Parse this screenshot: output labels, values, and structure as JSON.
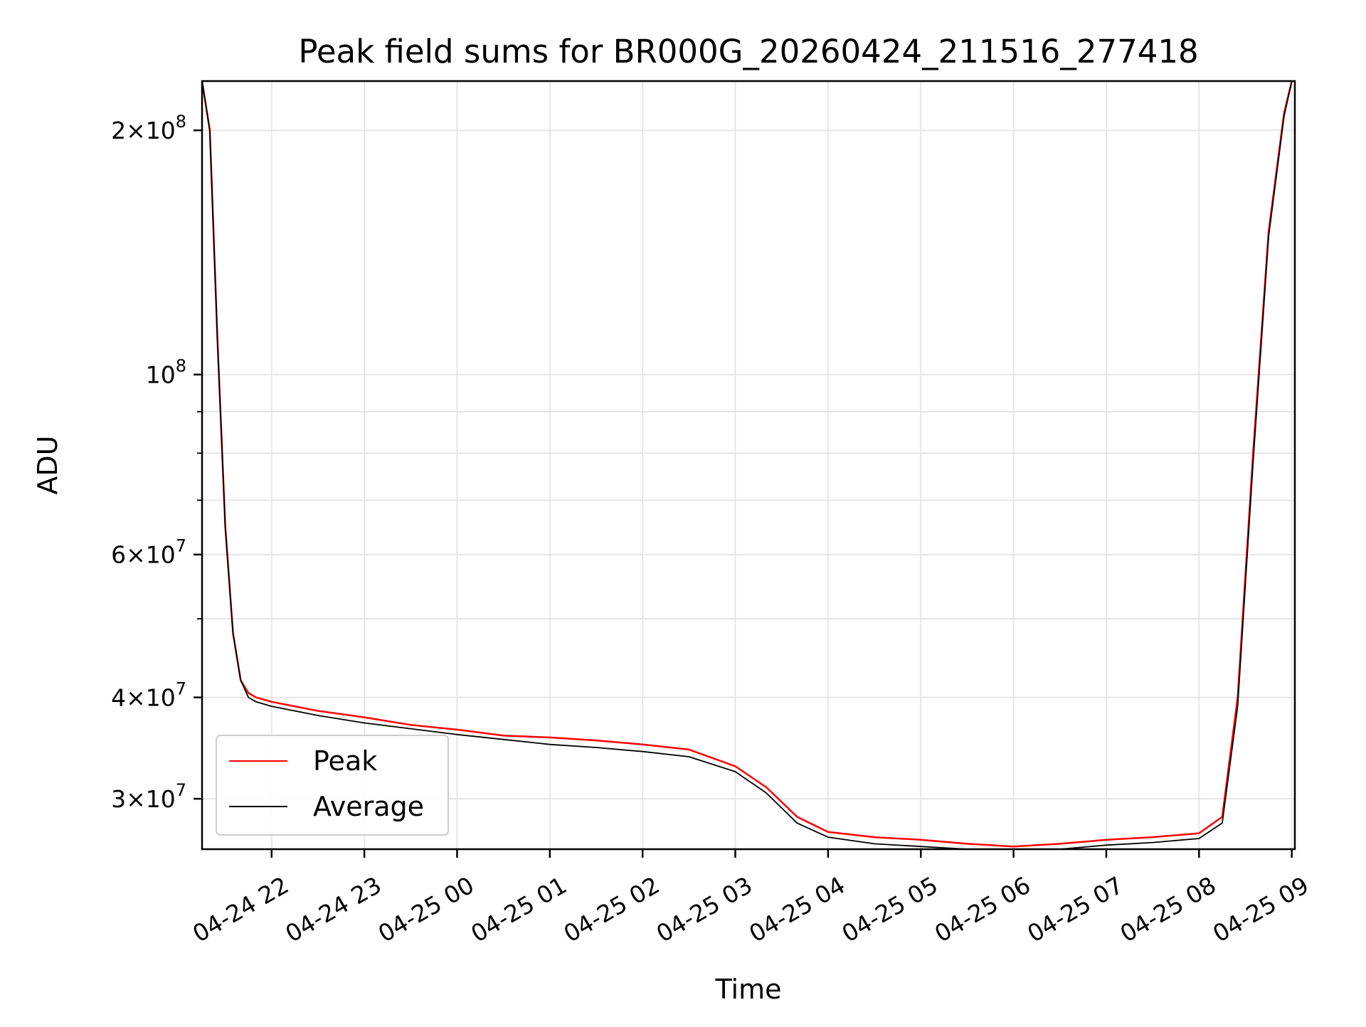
{
  "chart_data": {
    "type": "line",
    "title": "Peak field sums for BR000G_20260424_211516_277418",
    "xlabel": "Time",
    "ylabel": "ADU",
    "yscale": "log",
    "grid": true,
    "legend_position": "lower-left",
    "x_tick_labels": [
      "04-24 22",
      "04-24 23",
      "04-25 00",
      "04-25 01",
      "04-25 02",
      "04-25 03",
      "04-25 04",
      "04-25 05",
      "04-25 06",
      "04-25 07",
      "04-25 08",
      "04-25 09"
    ],
    "x_tick_values": [
      "2026-04-24 22:00",
      "2026-04-24 23:00",
      "2026-04-25 00:00",
      "2026-04-25 01:00",
      "2026-04-25 02:00",
      "2026-04-25 03:00",
      "2026-04-25 04:00",
      "2026-04-25 05:00",
      "2026-04-25 06:00",
      "2026-04-25 07:00",
      "2026-04-25 08:00",
      "2026-04-25 09:00"
    ],
    "xlim": [
      "2026-04-24 21:15",
      "2026-04-25 09:02"
    ],
    "ylim": [
      26000000,
      230000000
    ],
    "y_ticks": [
      {
        "value": 30000000,
        "mantissa": "3",
        "exponent": "7"
      },
      {
        "value": 40000000,
        "mantissa": "4",
        "exponent": "7"
      },
      {
        "value": 60000000,
        "mantissa": "6",
        "exponent": "7"
      },
      {
        "value": 100000000,
        "mantissa": "",
        "exponent": "8"
      },
      {
        "value": 200000000,
        "mantissa": "2",
        "exponent": "8"
      }
    ],
    "series": [
      {
        "name": "Peak",
        "color": "#ff0000",
        "x": [
          "2026-04-24 21:15",
          "2026-04-24 21:20",
          "2026-04-24 21:25",
          "2026-04-24 21:30",
          "2026-04-24 21:35",
          "2026-04-24 21:40",
          "2026-04-24 21:45",
          "2026-04-24 21:50",
          "2026-04-24 22:00",
          "2026-04-24 22:30",
          "2026-04-24 23:00",
          "2026-04-24 23:30",
          "2026-04-25 00:00",
          "2026-04-25 00:30",
          "2026-04-25 01:00",
          "2026-04-25 01:30",
          "2026-04-25 02:00",
          "2026-04-25 02:30",
          "2026-04-25 03:00",
          "2026-04-25 03:20",
          "2026-04-25 03:40",
          "2026-04-25 04:00",
          "2026-04-25 04:30",
          "2026-04-25 05:00",
          "2026-04-25 05:30",
          "2026-04-25 06:00",
          "2026-04-25 06:30",
          "2026-04-25 07:00",
          "2026-04-25 07:30",
          "2026-04-25 08:00",
          "2026-04-25 08:15",
          "2026-04-25 08:25",
          "2026-04-25 08:35",
          "2026-04-25 08:45",
          "2026-04-25 08:55",
          "2026-04-25 09:00"
        ],
        "y": [
          230000000,
          200000000,
          110000000,
          65000000,
          48000000,
          42000000,
          40500000,
          40000000,
          39500000,
          38500000,
          37800000,
          37000000,
          36500000,
          35900000,
          35700000,
          35400000,
          35000000,
          34500000,
          32900000,
          31000000,
          28500000,
          27300000,
          26900000,
          26700000,
          26400000,
          26200000,
          26400000,
          26700000,
          26900000,
          27200000,
          28500000,
          40000000,
          80000000,
          150000000,
          210000000,
          230000000
        ]
      },
      {
        "name": "Average",
        "color": "#000000",
        "x": [
          "2026-04-24 21:15",
          "2026-04-24 21:20",
          "2026-04-24 21:25",
          "2026-04-24 21:30",
          "2026-04-24 21:35",
          "2026-04-24 21:40",
          "2026-04-24 21:45",
          "2026-04-24 21:50",
          "2026-04-24 22:00",
          "2026-04-24 22:30",
          "2026-04-24 23:00",
          "2026-04-24 23:30",
          "2026-04-25 00:00",
          "2026-04-25 00:30",
          "2026-04-25 01:00",
          "2026-04-25 01:30",
          "2026-04-25 02:00",
          "2026-04-25 02:30",
          "2026-04-25 03:00",
          "2026-04-25 03:20",
          "2026-04-25 03:40",
          "2026-04-25 04:00",
          "2026-04-25 04:30",
          "2026-04-25 05:00",
          "2026-04-25 05:30",
          "2026-04-25 06:00",
          "2026-04-25 06:30",
          "2026-04-25 07:00",
          "2026-04-25 07:30",
          "2026-04-25 08:00",
          "2026-04-25 08:15",
          "2026-04-25 08:25",
          "2026-04-25 08:35",
          "2026-04-25 08:45",
          "2026-04-25 08:55",
          "2026-04-25 09:00"
        ],
        "y": [
          230000000,
          200000000,
          110000000,
          65000000,
          48000000,
          42000000,
          40000000,
          39500000,
          39000000,
          38000000,
          37200000,
          36600000,
          36000000,
          35500000,
          35000000,
          34700000,
          34300000,
          33800000,
          32400000,
          30500000,
          28000000,
          26900000,
          26400000,
          26200000,
          26000000,
          25900000,
          26000000,
          26300000,
          26500000,
          26800000,
          28000000,
          39000000,
          78000000,
          148000000,
          208000000,
          230000000
        ]
      }
    ]
  }
}
